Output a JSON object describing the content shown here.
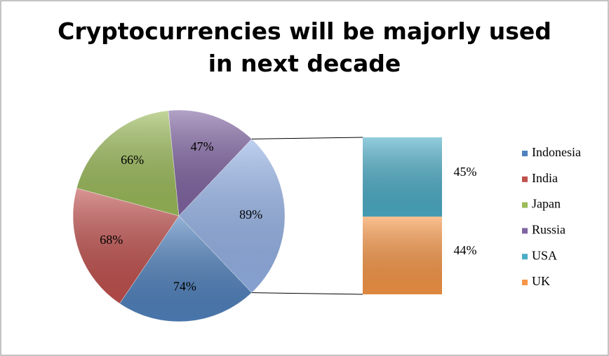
{
  "chart_data": {
    "type": "pie-of-bar",
    "title": "Cryptocurrencies will be majorly used in next decade",
    "categories": [
      "Indonesia",
      "India",
      "Japan",
      "Russia",
      "USA",
      "UK"
    ],
    "values": [
      74,
      68,
      66,
      47,
      45,
      44
    ],
    "value_labels": [
      "74%",
      "68%",
      "66%",
      "47%",
      "45%",
      "44%"
    ],
    "colors": [
      "#4f81bd",
      "#c0504d",
      "#9bbb59",
      "#8064a2",
      "#4bacc6",
      "#f79646"
    ],
    "secondary_count": 2,
    "split_value": 89,
    "split_value_label": "89%",
    "split_color": "#95b3e8",
    "legend": "right"
  }
}
